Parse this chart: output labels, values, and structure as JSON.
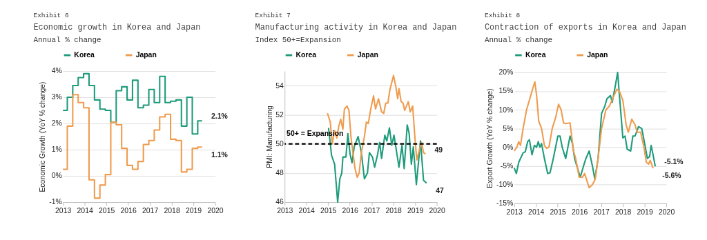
{
  "chart_data": [
    {
      "type": "step",
      "title": "Economic growth in Korea and Japan",
      "subtitle": "Annual % change",
      "ylabel": "Economic Growth (YoY % change)",
      "xlim": [
        2013,
        2020
      ],
      "xticks": [
        2013,
        2014,
        2015,
        2016,
        2017,
        2018,
        2019,
        2020
      ],
      "ylim": [
        -1,
        4
      ],
      "yticks": [
        {
          "value": -1,
          "label": "-1%"
        },
        {
          "value": 0,
          "label": "0%"
        },
        {
          "value": 1,
          "label": "1%"
        },
        {
          "value": 2,
          "label": "2%"
        },
        {
          "value": 3,
          "label": "3%"
        },
        {
          "value": 4,
          "label": "4%"
        }
      ],
      "grid": "y",
      "legend": "top",
      "series": [
        {
          "name": "Korea",
          "color": "#1e9b7b",
          "x": [
            2013.0,
            2013.2,
            2013.45,
            2013.7,
            2013.95,
            2014.2,
            2014.45,
            2014.7,
            2014.95,
            2015.2,
            2015.45,
            2015.7,
            2015.95,
            2016.2,
            2016.45,
            2016.7,
            2016.95,
            2017.2,
            2017.45,
            2017.7,
            2017.95,
            2018.2,
            2018.45,
            2018.7,
            2018.95,
            2019.2,
            2019.4
          ],
          "values": [
            2.5,
            3.0,
            3.45,
            3.75,
            3.9,
            3.45,
            2.9,
            2.55,
            2.5,
            2.05,
            3.25,
            3.4,
            2.9,
            3.65,
            2.6,
            2.7,
            3.3,
            2.8,
            3.8,
            2.8,
            2.85,
            2.9,
            1.9,
            3.0,
            1.6,
            2.1,
            2.1
          ]
        },
        {
          "name": "Japan",
          "color": "#ef9c4e",
          "x": [
            2013.0,
            2013.2,
            2013.45,
            2013.7,
            2013.95,
            2014.2,
            2014.45,
            2014.7,
            2014.95,
            2015.2,
            2015.45,
            2015.7,
            2015.95,
            2016.2,
            2016.45,
            2016.7,
            2016.95,
            2017.2,
            2017.45,
            2017.7,
            2017.95,
            2018.2,
            2018.45,
            2018.7,
            2018.95,
            2019.2,
            2019.4
          ],
          "values": [
            0.25,
            1.9,
            3.1,
            2.8,
            2.6,
            -0.15,
            -0.85,
            -0.35,
            0.05,
            2.05,
            1.95,
            1.05,
            0.4,
            0.25,
            0.55,
            1.2,
            1.35,
            1.75,
            2.25,
            2.35,
            1.4,
            1.35,
            0.15,
            0.25,
            1.05,
            1.1,
            1.1
          ]
        }
      ],
      "annotations": [
        "Exhibit 6",
        {
          "text": "2.1%",
          "x": 2019.4,
          "y": 2.1
        },
        {
          "text": "1.1%",
          "x": 2019.4,
          "y": 1.1
        }
      ]
    },
    {
      "type": "line",
      "title": "Manufacturing activity in Korea and Japan",
      "subtitle": "Index 50+=Expansion",
      "ylabel": "PMI: Manufacturing",
      "xlim": [
        2013,
        2020
      ],
      "xticks": [
        2013,
        2014,
        2015,
        2016,
        2017,
        2018,
        2019,
        2020
      ],
      "ylim": [
        46,
        55
      ],
      "yticks": [
        46,
        48,
        50,
        52,
        54
      ],
      "grid": "y",
      "legend": "top",
      "series": [
        {
          "name": "Korea",
          "color": "#1e9b7b",
          "x": [
            2015.02,
            2015.16,
            2015.3,
            2015.44,
            2015.54,
            2015.63,
            2015.68,
            2015.82,
            2015.91,
            2016.01,
            2016.1,
            2016.2,
            2016.38,
            2016.52,
            2016.67,
            2016.81,
            2016.9,
            2017.04,
            2017.14,
            2017.28,
            2017.37,
            2017.46,
            2017.61,
            2017.7,
            2017.82,
            2017.93,
            2018.03,
            2018.26,
            2018.4,
            2018.5,
            2018.64,
            2018.73,
            2018.83,
            2018.92,
            2019.06,
            2019.25,
            2019.39,
            2019.53
          ],
          "values": [
            51.1,
            49.2,
            48.6,
            46.0,
            47.6,
            48.0,
            49.1,
            49.1,
            50.7,
            49.3,
            48.7,
            49.8,
            50.5,
            49.5,
            47.6,
            48.0,
            49.4,
            49.1,
            48.4,
            49.3,
            50.1,
            49.0,
            50.6,
            50.2,
            51.1,
            49.9,
            50.6,
            48.4,
            49.9,
            48.3,
            51.3,
            50.7,
            48.6,
            49.8,
            47.2,
            50.2,
            47.5,
            47.3
          ]
        },
        {
          "name": "Japan",
          "color": "#ef9c4e",
          "x": [
            2014.97,
            2015.1,
            2015.19,
            2015.3,
            2015.4,
            2015.49,
            2015.58,
            2015.68,
            2015.75,
            2015.87,
            2015.96,
            2016.05,
            2016.15,
            2016.24,
            2016.34,
            2016.43,
            2016.52,
            2016.67,
            2016.76,
            2016.85,
            2016.95,
            2017.09,
            2017.18,
            2017.32,
            2017.46,
            2017.56,
            2017.65,
            2017.75,
            2017.84,
            2018.01,
            2018.12,
            2018.2,
            2018.26,
            2018.36,
            2018.45,
            2018.52,
            2018.69,
            2018.78,
            2018.89,
            2018.99,
            2019.08,
            2019.2,
            2019.3,
            2019.39,
            2019.48
          ],
          "values": [
            52.1,
            51.5,
            50.0,
            50.9,
            50.4,
            51.2,
            51.7,
            51.0,
            52.4,
            52.6,
            52.3,
            50.5,
            49.3,
            48.3,
            47.7,
            48.0,
            49.3,
            50.5,
            51.5,
            51.4,
            52.3,
            53.3,
            52.4,
            53.1,
            52.2,
            52.1,
            52.8,
            52.8,
            53.7,
            54.7,
            53.9,
            53.1,
            53.8,
            52.9,
            52.8,
            52.3,
            52.9,
            52.2,
            52.6,
            50.5,
            48.9,
            49.6,
            50.1,
            49.4,
            49.3
          ]
        }
      ],
      "ref_lines": [
        {
          "axis": "y",
          "value": 50,
          "label": "50+ = Expansion",
          "color": "#000000",
          "line_style": "dashed"
        }
      ],
      "annotations": [
        "Exhibit 7",
        {
          "text": "49",
          "x": 2019.48,
          "y": 49.3
        },
        {
          "text": "47",
          "x": 2019.53,
          "y": 47.3
        }
      ]
    },
    {
      "type": "line",
      "title": "Contraction of exports in Korea and Japan",
      "subtitle": "Annual % change",
      "ylabel": "Export Growth (YoY % change)",
      "xlim": [
        2013,
        2020
      ],
      "xticks": [
        2013,
        2014,
        2015,
        2016,
        2017,
        2018,
        2019,
        2020
      ],
      "ylim": [
        -15,
        20
      ],
      "yticks": [
        {
          "value": -15,
          "label": "-15%"
        },
        {
          "value": -10,
          "label": "-10%"
        },
        {
          "value": -5,
          "label": "-5%"
        },
        {
          "value": 0,
          "label": "0%"
        },
        {
          "value": 5,
          "label": "5%"
        },
        {
          "value": 10,
          "label": "10%"
        },
        {
          "value": 15,
          "label": "15%"
        },
        {
          "value": 20,
          "label": "20%"
        }
      ],
      "grid": "y",
      "legend": "top",
      "series": [
        {
          "name": "Korea",
          "color": "#1e9b7b",
          "x": [
            2013.0,
            2013.1,
            2013.21,
            2013.41,
            2013.51,
            2013.62,
            2013.7,
            2013.82,
            2013.93,
            2014.03,
            2014.11,
            2014.18,
            2014.26,
            2014.39,
            2014.54,
            2014.65,
            2014.8,
            2015.01,
            2015.11,
            2015.21,
            2015.37,
            2015.47,
            2015.57,
            2015.68,
            2015.78,
            2016.04,
            2016.19,
            2016.3,
            2016.45,
            2016.6,
            2016.71,
            2016.86,
            2017.02,
            2017.17,
            2017.27,
            2017.43,
            2017.51,
            2017.64,
            2017.76,
            2017.84,
            2018.0,
            2018.1,
            2018.2,
            2018.36,
            2018.46,
            2018.56,
            2018.72,
            2018.87,
            2018.97,
            2019.13,
            2019.23,
            2019.3,
            2019.39,
            2019.49
          ],
          "values": [
            -5.5,
            -7,
            -4,
            -1.5,
            -1.2,
            1.5,
            2,
            -2,
            0.5,
            0,
            1.5,
            0,
            1,
            -3,
            -7,
            -6.8,
            -3,
            3,
            3,
            0,
            -3,
            0,
            3,
            1,
            -3,
            -8,
            -5,
            -3,
            -1,
            -5,
            -8.5,
            -3,
            9,
            11,
            13,
            13.8,
            12,
            16,
            20,
            14,
            2.5,
            3,
            -0.5,
            -1,
            3,
            3,
            5.5,
            5,
            2,
            -3,
            -2.5,
            0.5,
            -2,
            -5.1
          ]
        },
        {
          "name": "Japan",
          "color": "#ef9c4e",
          "x": [
            2013.0,
            2013.12,
            2013.21,
            2013.29,
            2013.41,
            2013.57,
            2013.72,
            2013.82,
            2013.95,
            2014.03,
            2014.13,
            2014.26,
            2014.39,
            2014.49,
            2014.6,
            2014.75,
            2014.91,
            2015.04,
            2015.16,
            2015.27,
            2015.37,
            2015.57,
            2015.73,
            2015.83,
            2015.99,
            2016.14,
            2016.24,
            2016.35,
            2016.45,
            2016.6,
            2016.73,
            2016.86,
            2017.02,
            2017.22,
            2017.38,
            2017.53,
            2017.72,
            2017.84,
            2018.0,
            2018.15,
            2018.25,
            2018.41,
            2018.56,
            2018.66,
            2018.82,
            2018.97,
            2019.08,
            2019.18,
            2019.26,
            2019.39
          ],
          "values": [
            -1,
            0,
            1.5,
            0.5,
            5,
            10,
            13,
            15,
            17.5,
            14,
            7,
            5,
            0.5,
            -0.3,
            0,
            5,
            8,
            11.5,
            10,
            6.5,
            6.3,
            6.5,
            -1,
            -3,
            -8,
            -8,
            -7,
            -9,
            -10.8,
            -10,
            -8.5,
            -3,
            5,
            10,
            11,
            13,
            15.5,
            15,
            12.5,
            6,
            4,
            7.5,
            6,
            4,
            4,
            0,
            -4,
            -4.5,
            -3.5,
            -5.6
          ]
        }
      ],
      "annotations": [
        "Exhibit 8",
        {
          "text": "-5.1%",
          "x": 2019.49,
          "y": -5.1
        },
        {
          "text": "-5.6%",
          "x": 2019.39,
          "y": -5.6
        }
      ]
    }
  ]
}
